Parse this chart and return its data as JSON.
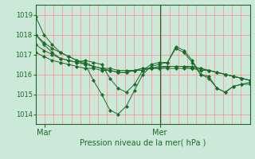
{
  "background_color": "#cce8d8",
  "plot_bg_color": "#cce8d8",
  "grid_color_major": "#ff8888",
  "grid_color_minor": "#ff8888",
  "line_color": "#1a6b2a",
  "marker_color": "#1a6b2a",
  "xlabel": "Pression niveau de la mer( hPa )",
  "ylim": [
    1013.5,
    1019.5
  ],
  "yticks": [
    1014,
    1015,
    1016,
    1017,
    1018,
    1019
  ],
  "xtick_labels": [
    "Mar",
    "Mer"
  ],
  "xtick_positions": [
    0.04,
    0.58
  ],
  "vline_x": 0.58,
  "n_vertical_grid": 24,
  "series": [
    [
      1018.9,
      1018.0,
      1017.5,
      1017.1,
      1016.9,
      1016.7,
      1016.5,
      1015.7,
      1015.0,
      1014.2,
      1014.0,
      1014.4,
      1015.2,
      1016.0,
      1016.4,
      1016.5,
      1016.6,
      1017.3,
      1017.1,
      1016.6,
      1016.0,
      1015.8,
      1015.3,
      1015.1,
      1015.4,
      1015.5,
      1015.5
    ],
    [
      1018.0,
      1017.6,
      1017.3,
      1017.1,
      1016.9,
      1016.7,
      1016.6,
      1016.4,
      1016.3,
      1016.2,
      1016.1,
      1016.1,
      1016.2,
      1016.3,
      1016.3,
      1016.4,
      1016.4,
      1016.4,
      1016.4,
      1016.4,
      1016.3,
      1016.2,
      1016.1,
      1016.0,
      1015.9,
      1015.8,
      1015.7
    ],
    [
      1017.5,
      1017.2,
      1017.0,
      1016.8,
      1016.7,
      1016.6,
      1016.5,
      1016.4,
      1016.3,
      1016.3,
      1016.2,
      1016.2,
      1016.2,
      1016.3,
      1016.3,
      1016.3,
      1016.4,
      1016.4,
      1016.4,
      1016.3,
      1016.3,
      1016.2,
      1016.1,
      1016.0,
      1015.9,
      1015.8,
      1015.7
    ],
    [
      1017.1,
      1016.9,
      1016.7,
      1016.6,
      1016.5,
      1016.4,
      1016.3,
      1016.3,
      1016.2,
      1016.2,
      1016.1,
      1016.1,
      1016.2,
      1016.2,
      1016.3,
      1016.3,
      1016.3,
      1016.3,
      1016.3,
      1016.3,
      1016.2,
      1016.2,
      1016.1,
      1016.0,
      1015.9,
      1015.8,
      1015.7
    ],
    [
      1018.0,
      1017.5,
      1017.1,
      1016.8,
      1016.7,
      1016.6,
      1016.7,
      1016.6,
      1016.5,
      1015.8,
      1015.3,
      1015.1,
      1015.5,
      1016.2,
      1016.5,
      1016.6,
      1016.6,
      1017.4,
      1017.2,
      1016.7,
      1016.0,
      1015.9,
      1015.3,
      1015.1,
      1015.4,
      1015.5,
      1015.6
    ]
  ]
}
